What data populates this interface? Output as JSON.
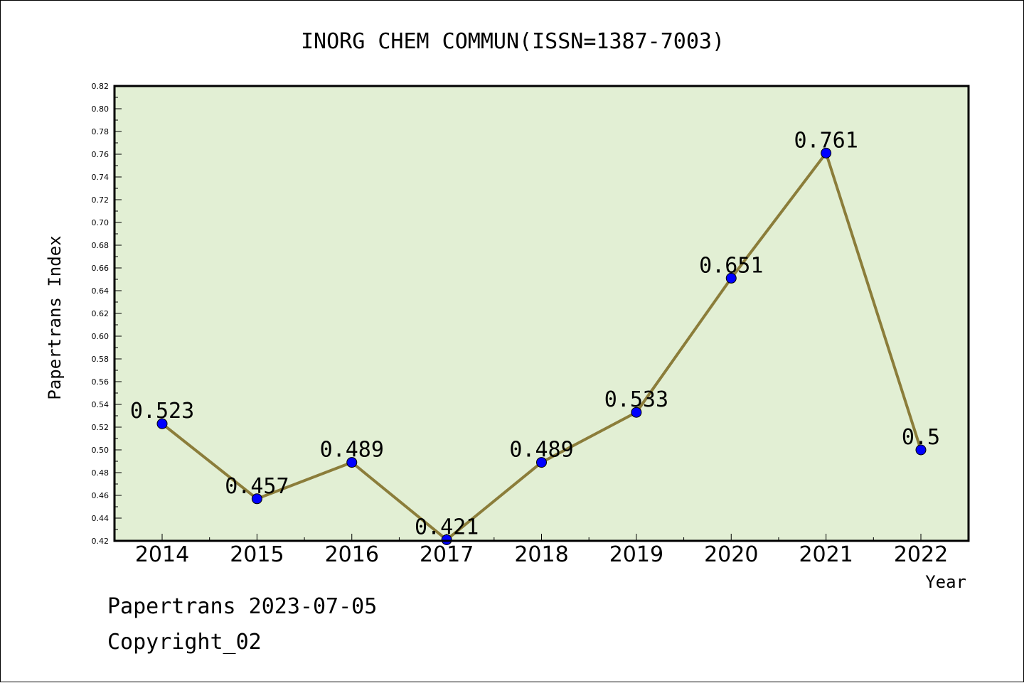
{
  "chart_data": {
    "type": "line",
    "title": "INORG CHEM COMMUN(ISSN=1387-7003)",
    "xlabel": "Year",
    "ylabel": "Papertrans Index",
    "categories": [
      "2014",
      "2015",
      "2016",
      "2017",
      "2018",
      "2019",
      "2020",
      "2021",
      "2022"
    ],
    "series": [
      {
        "values": [
          0.523,
          0.457,
          0.489,
          0.421,
          0.489,
          0.533,
          0.651,
          0.761,
          0.5
        ],
        "labels": [
          "0.523",
          "0.457",
          "0.489",
          "0.421",
          "0.489",
          "0.533",
          "0.651",
          "0.761",
          "0.5"
        ]
      }
    ],
    "ylim": [
      0.42,
      0.82
    ],
    "yticks": [
      "0.42",
      "0.44",
      "0.46",
      "0.48",
      "0.50",
      "0.52",
      "0.54",
      "0.56",
      "0.58",
      "0.60",
      "0.62",
      "0.64",
      "0.66",
      "0.68",
      "0.70",
      "0.72",
      "0.74",
      "0.76",
      "0.78",
      "0.80",
      "0.82"
    ],
    "grid": false,
    "legend": "none",
    "colors": {
      "plot_background": "#e2efd4",
      "line": "#8b7d3a",
      "marker": "#0000ff"
    }
  },
  "footer": {
    "line1": "Papertrans 2023-07-05",
    "line2": "Copyright_02"
  }
}
